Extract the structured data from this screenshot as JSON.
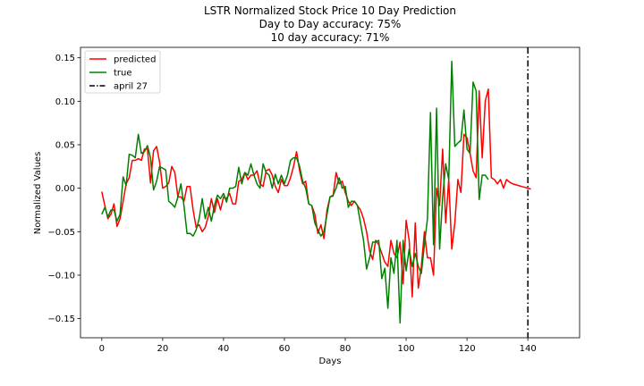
{
  "chart_data": {
    "type": "line",
    "title_lines": [
      "LSTR Normalized Stock Price 10 Day Prediction",
      "Day to Day accuracy: 75%",
      "10 day accuracy: 71%"
    ],
    "xlabel": "Days",
    "ylabel": "Normalized Values",
    "xlim": [
      -7,
      157
    ],
    "ylim": [
      -0.172,
      0.162
    ],
    "xticks": [
      0,
      20,
      40,
      60,
      80,
      100,
      120,
      140
    ],
    "yticks": [
      -0.15,
      -0.1,
      -0.05,
      0.0,
      0.05,
      0.1,
      0.15
    ],
    "ytick_labels": [
      "−0.15",
      "−0.10",
      "−0.05",
      "0.00",
      "0.05",
      "0.10",
      "0.15"
    ],
    "grid": false,
    "legend_position": "top-left",
    "series": [
      {
        "name": "predicted",
        "color": "#ff0000",
        "values": [
          -0.004,
          -0.02,
          -0.035,
          -0.03,
          -0.018,
          -0.044,
          -0.035,
          -0.015,
          0.005,
          0.012,
          0.032,
          0.032,
          0.034,
          0.032,
          0.045,
          0.045,
          0.006,
          0.043,
          0.048,
          0.03,
          0.0,
          0.002,
          0.006,
          0.025,
          0.018,
          -0.01,
          -0.01,
          -0.015,
          0.002,
          0.002,
          -0.025,
          -0.045,
          -0.042,
          -0.05,
          -0.045,
          -0.032,
          -0.012,
          -0.028,
          -0.012,
          -0.025,
          -0.01,
          -0.012,
          -0.006,
          -0.018,
          -0.018,
          0.008,
          0.01,
          0.018,
          0.01,
          0.015,
          0.015,
          0.02,
          0.005,
          0.002,
          0.02,
          0.022,
          0.015,
          0.002,
          -0.005,
          0.01,
          0.003,
          0.003,
          0.012,
          0.025,
          0.042,
          0.02,
          0.005,
          0.008,
          -0.018,
          -0.02,
          -0.03,
          -0.052,
          -0.042,
          -0.058,
          -0.025,
          -0.01,
          -0.009,
          0.018,
          0.005,
          0.008,
          -0.005,
          -0.015,
          -0.02,
          -0.015,
          -0.02,
          -0.025,
          -0.035,
          -0.05,
          -0.072,
          -0.082,
          -0.06,
          -0.065,
          -0.075,
          -0.085,
          -0.09,
          -0.06,
          -0.075,
          -0.08,
          -0.062,
          -0.11,
          -0.037,
          -0.06,
          -0.125,
          -0.04,
          -0.115,
          -0.09,
          -0.05,
          -0.08,
          -0.08,
          -0.1,
          0.0,
          -0.02,
          0.045,
          -0.04,
          0.01,
          -0.07,
          -0.04,
          0.01,
          -0.005,
          0.062,
          0.058,
          0.04,
          0.02,
          0.012,
          0.112,
          0.035,
          0.1,
          0.114,
          0.012,
          0.01,
          0.005,
          0.01,
          0.0,
          0.01,
          0.007,
          0.005,
          0.004,
          0.003,
          0.002,
          0.001,
          0.0,
          -0.001
        ],
        "x_start": 0
      },
      {
        "name": "true",
        "color": "#008000",
        "values": [
          -0.03,
          -0.022,
          -0.033,
          -0.025,
          -0.025,
          -0.038,
          -0.03,
          0.013,
          0.003,
          0.039,
          0.038,
          0.035,
          0.062,
          0.04,
          0.042,
          0.049,
          0.035,
          -0.002,
          0.008,
          0.025,
          0.023,
          0.021,
          -0.015,
          -0.018,
          -0.022,
          -0.01,
          0.005,
          -0.02,
          -0.052,
          -0.052,
          -0.055,
          -0.048,
          -0.035,
          -0.012,
          -0.035,
          -0.022,
          -0.038,
          -0.02,
          -0.008,
          -0.012,
          -0.006,
          -0.016,
          0.0,
          0.0,
          0.002,
          0.024,
          0.005,
          0.018,
          0.015,
          0.028,
          0.015,
          0.005,
          0.0,
          0.028,
          0.018,
          0.015,
          0.0,
          0.016,
          0.005,
          0.015,
          0.005,
          0.015,
          0.032,
          0.035,
          0.035,
          0.025,
          0.008,
          0.0,
          -0.018,
          -0.02,
          -0.04,
          -0.048,
          -0.055,
          -0.05,
          -0.03,
          -0.01,
          -0.008,
          0.0,
          0.012,
          0.0,
          0.002,
          -0.022,
          -0.015,
          -0.015,
          -0.02,
          -0.04,
          -0.06,
          -0.093,
          -0.08,
          -0.062,
          -0.062,
          -0.06,
          -0.104,
          -0.092,
          -0.138,
          -0.08,
          -0.098,
          -0.06,
          -0.155,
          -0.06,
          -0.095,
          -0.07,
          -0.09,
          -0.075,
          -0.09,
          -0.098,
          -0.065,
          -0.035,
          0.087,
          -0.065,
          0.092,
          -0.07,
          -0.01,
          0.028,
          0.01,
          0.146,
          0.048,
          0.052,
          0.055,
          0.09,
          0.045,
          0.04,
          0.122,
          0.112,
          -0.013,
          0.015,
          0.015,
          0.01
        ],
        "x_start": 0
      }
    ],
    "vline": {
      "x": 140,
      "name": "april 27",
      "color": "#000000",
      "style": "dashdot"
    }
  }
}
